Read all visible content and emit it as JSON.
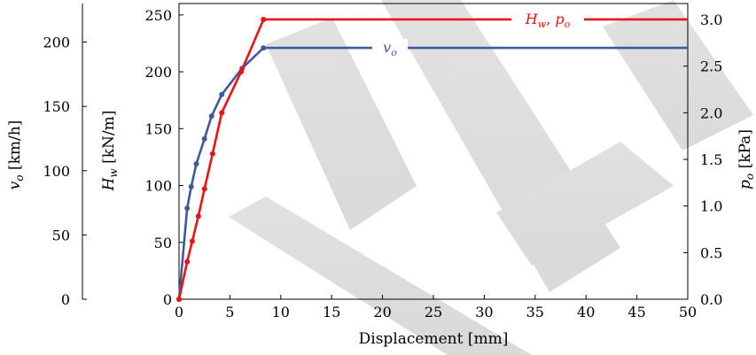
{
  "chart_data": {
    "type": "line",
    "xlabel": "Displacement [mm]",
    "x_ticks": [
      "0",
      "5",
      "10",
      "15",
      "20",
      "25",
      "30",
      "35",
      "40",
      "45",
      "50"
    ],
    "xlim": [
      0,
      50
    ],
    "y_axes": {
      "vo": {
        "label": "v_o [km/h]",
        "ticks": [
          "0",
          "50",
          "100",
          "150",
          "200"
        ],
        "ylim": [
          0,
          230
        ]
      },
      "hw": {
        "label": "H_w [kN/m]",
        "ticks": [
          "0",
          "50",
          "100",
          "150",
          "200",
          "250"
        ],
        "ylim": [
          0,
          260
        ]
      },
      "po": {
        "label": "p_o [kPa]",
        "ticks": [
          "0.0",
          "0.5",
          "1.0",
          "1.5",
          "2.0",
          "2.5",
          "3.0"
        ],
        "ylim": [
          0,
          3.1714
        ]
      }
    },
    "series": [
      {
        "name": "v_o",
        "label_text": "v",
        "label_sub": "o",
        "color": "#3d5a9e",
        "axis": "hw",
        "x": [
          0,
          0.8,
          1.2,
          1.7,
          2.5,
          3.2,
          4.2,
          6.2,
          8.3,
          50
        ],
        "y": [
          0,
          80,
          99,
          119,
          141,
          161,
          180,
          203,
          221,
          221
        ]
      },
      {
        "name": "H_w, p_o",
        "label_text": "H",
        "label_sub": "w",
        "label_text2": "p",
        "label_sub2": "o",
        "color": "#ee1111",
        "axis": "hw",
        "x": [
          0,
          0.8,
          1.3,
          1.9,
          2.5,
          3.3,
          4.2,
          6.1,
          8.3,
          50
        ],
        "y": [
          0,
          33,
          51,
          73,
          97,
          128,
          164,
          200,
          246,
          246
        ]
      }
    ],
    "grid": false
  }
}
